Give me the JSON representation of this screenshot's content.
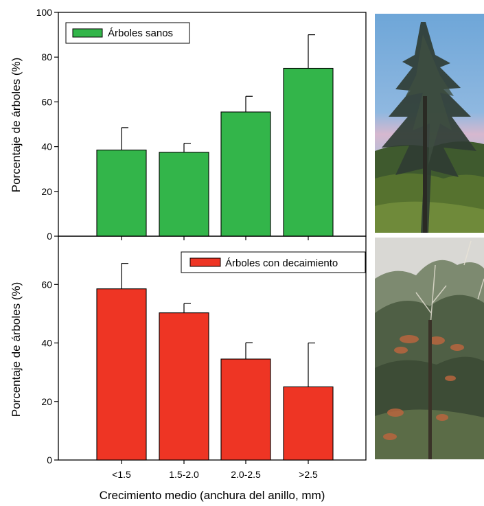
{
  "chart_data": [
    {
      "type": "bar",
      "title": "",
      "xlabel": "",
      "ylabel": "Porcentaje de árboles (%)",
      "ylim": [
        0,
        100
      ],
      "yticks": [
        0,
        20,
        40,
        60,
        80,
        100
      ],
      "categories": [
        "<1.5",
        "1.5-2.0",
        "2.0-2.5",
        ">2.5"
      ],
      "series": [
        {
          "name": "Árboles sanos",
          "values": [
            38.5,
            37.5,
            55.5,
            75
          ],
          "errors": [
            10,
            4,
            7,
            15
          ],
          "color": "#33b54a"
        }
      ],
      "legend": "top-left",
      "grid": false
    },
    {
      "type": "bar",
      "title": "",
      "xlabel": "Crecimiento medio (anchura del anillo, mm)",
      "ylabel": "Porcentaje de árboles (%)",
      "ylim": [
        0,
        76.5
      ],
      "yticks": [
        0,
        20,
        40,
        60
      ],
      "categories": [
        "<1.5",
        "1.5-2.0",
        "2.0-2.5",
        ">2.5"
      ],
      "series": [
        {
          "name": "Árboles con decaimiento",
          "values": [
            58.5,
            50.3,
            34.5,
            25
          ],
          "errors": [
            8.7,
            3.2,
            5.6,
            15
          ],
          "color": "#ee3524"
        }
      ],
      "legend": "top-right",
      "grid": false
    }
  ],
  "photos": {
    "top": {
      "icon": "healthy-cedar-tree-photo"
    },
    "bottom": {
      "icon": "declining-cedar-tree-photo"
    }
  }
}
